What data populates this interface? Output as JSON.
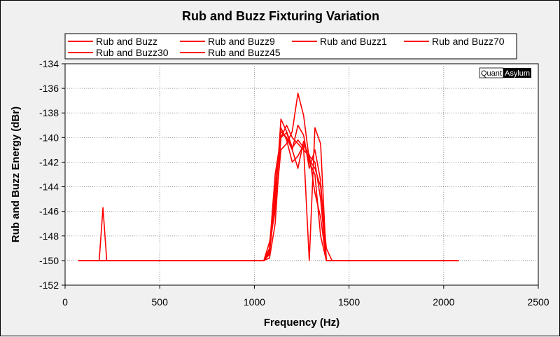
{
  "chart_data": {
    "type": "line",
    "title": "Rub and Buzz Fixturing Variation",
    "xlabel": "Frequency (Hz)",
    "ylabel": "Rub and Buzz Energy (dBr)",
    "xlim": [
      0,
      2500
    ],
    "ylim": [
      -152,
      -134
    ],
    "xticks": [
      0,
      500,
      1000,
      1500,
      2000,
      2500
    ],
    "yticks": [
      -152,
      -150,
      -148,
      -146,
      -144,
      -142,
      -140,
      -138,
      -136,
      -134
    ],
    "grid": true,
    "legend_position": "top",
    "line_color": "#ff0000",
    "series": [
      {
        "name": "Rub and Buzz",
        "x": [
          70,
          180,
          200,
          220,
          1050,
          1080,
          1110,
          1140,
          1170,
          1200,
          1230,
          1260,
          1290,
          1320,
          1350,
          1380,
          1410,
          2080
        ],
        "y": [
          -150,
          -150,
          -145.7,
          -150,
          -150,
          -149.2,
          -145.5,
          -138.5,
          -139.5,
          -140.8,
          -140.2,
          -140.8,
          -150,
          -139.2,
          -140.5,
          -150,
          -150,
          -150
        ]
      },
      {
        "name": "Rub and Buzz9",
        "x": [
          70,
          1050,
          1080,
          1110,
          1140,
          1170,
          1200,
          1230,
          1260,
          1290,
          1320,
          1350,
          1380,
          1410,
          2080
        ],
        "y": [
          -150,
          -150,
          -149,
          -143,
          -140,
          -139,
          -140,
          -140.5,
          -141,
          -141.5,
          -142,
          -145,
          -150,
          -150,
          -150
        ]
      },
      {
        "name": "Rub and Buzz1",
        "x": [
          70,
          1050,
          1080,
          1110,
          1140,
          1170,
          1200,
          1230,
          1260,
          1290,
          1320,
          1350,
          1380,
          1410,
          2080
        ],
        "y": [
          -150,
          -150,
          -148.5,
          -146,
          -141,
          -140.5,
          -139.5,
          -136.4,
          -138.2,
          -141.8,
          -142.5,
          -144,
          -149,
          -150,
          -150
        ]
      },
      {
        "name": "Rub and Buzz70",
        "x": [
          70,
          1050,
          1080,
          1110,
          1140,
          1170,
          1200,
          1230,
          1260,
          1290,
          1320,
          1350,
          1380,
          1410,
          2080
        ],
        "y": [
          -150,
          -150,
          -149.5,
          -144,
          -139.5,
          -140,
          -141,
          -139,
          -139.8,
          -142.5,
          -141,
          -143.5,
          -150,
          -150,
          -150
        ]
      },
      {
        "name": "Rub and Buzz30",
        "x": [
          70,
          1050,
          1080,
          1110,
          1140,
          1170,
          1200,
          1230,
          1260,
          1290,
          1320,
          1350,
          1380,
          1410,
          2080
        ],
        "y": [
          -150,
          -150,
          -149.8,
          -147,
          -140,
          -139.6,
          -141,
          -142.5,
          -140.3,
          -142,
          -143,
          -148,
          -150,
          -150,
          -150
        ]
      },
      {
        "name": "Rub and Buzz45",
        "x": [
          70,
          1050,
          1080,
          1110,
          1140,
          1170,
          1200,
          1230,
          1260,
          1290,
          1320,
          1350,
          1380,
          1410,
          2080
        ],
        "y": [
          -150,
          -150,
          -149.4,
          -144.8,
          -139.2,
          -140.2,
          -142,
          -141.5,
          -140.6,
          -141.4,
          -144.5,
          -146.5,
          -150,
          -150,
          -150
        ]
      }
    ]
  },
  "brand": {
    "part1": "Quant",
    "part2": "Asylum"
  }
}
